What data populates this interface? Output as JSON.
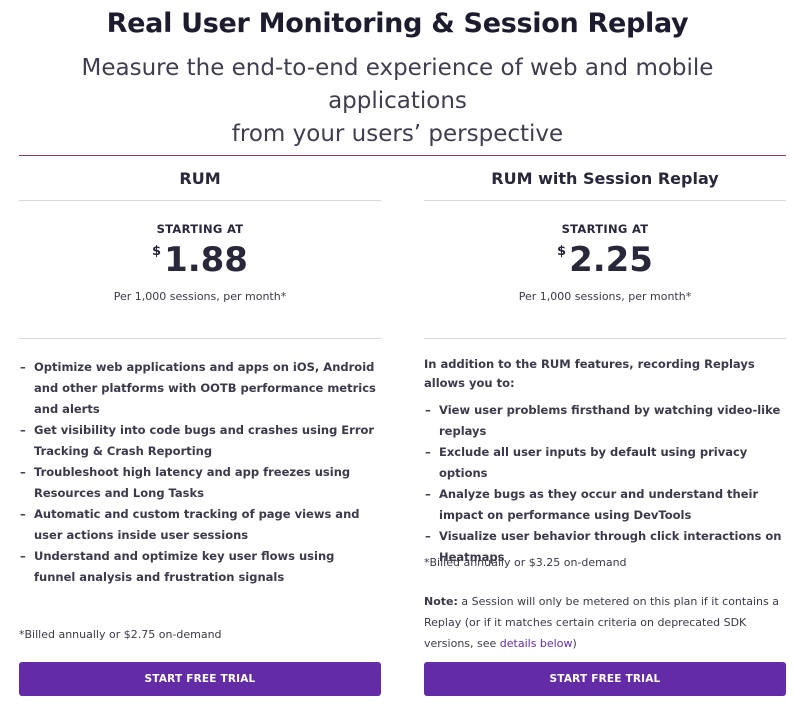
{
  "header": {
    "title": "Real User Monitoring & Session Replay",
    "subtitle_line1": "Measure the end-to-end experience of web and mobile applications",
    "subtitle_line2": "from your users’ perspective"
  },
  "colors": {
    "accent": "#632ca6",
    "rule": "#8a3d54",
    "text": "#28283a"
  },
  "plans": [
    {
      "name": "RUM",
      "starting_label": "STARTING AT",
      "currency": "$",
      "price": "1.88",
      "per": "Per 1,000 sessions, per month*",
      "features": [
        "Optimize web applications and apps on iOS, Android and other platforms with OOTB performance metrics and alerts",
        "Get visibility into code bugs and crashes using Error Tracking & Crash Reporting",
        "Troubleshoot high latency and app freezes using Resources and Long Tasks",
        "Automatic and custom tracking of page views and user actions inside user sessions",
        "Understand and optimize key user flows using funnel analysis and frustration signals"
      ],
      "billed": "*Billed annually or $2.75 on-demand",
      "cta": "START FREE TRIAL"
    },
    {
      "name": "RUM with Session Replay",
      "starting_label": "STARTING AT",
      "currency": "$",
      "price": "2.25",
      "per": "Per 1,000 sessions, per month*",
      "intro": "In addition to the RUM features, recording Replays allows you to:",
      "features": [
        "View user problems firsthand by watching video-like replays",
        "Exclude all user inputs by default using privacy options",
        "Analyze bugs as they occur and understand their impact on performance using DevTools",
        "Visualize user behavior through click interactions on Heatmaps"
      ],
      "billed": "*Billed annually or $3.25 on-demand",
      "note_label": "Note:",
      "note_text": " a Session will only be metered on this plan if it contains a Replay (or if it matches certain criteria on deprecated SDK versions, see ",
      "note_link": "details below",
      "note_end": ")",
      "cta": "START FREE TRIAL"
    }
  ]
}
